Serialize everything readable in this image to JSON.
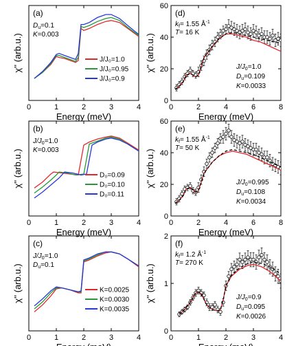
{
  "chart_data": [
    {
      "panel": "a",
      "type": "line",
      "xlabel": "Energy (meV)",
      "ylabel": "χ'' (arb.u.)",
      "xlim": [
        0,
        4
      ],
      "ylim": [
        0,
        9.5
      ],
      "xticks": [
        "0",
        "1",
        "2",
        "3",
        "4"
      ],
      "params": [
        "D",
        "=0.1",
        "K",
        "=0.003"
      ],
      "legend": "bottom-right",
      "series": [
        {
          "name": "J/J₀=1.0",
          "color": "#e0282c",
          "x": [
            0.2,
            0.5,
            0.8,
            1.0,
            1.1,
            1.3,
            1.5,
            1.7,
            1.8,
            1.9,
            2.0,
            2.2,
            2.5,
            2.8,
            3.0,
            3.3,
            3.6,
            4.0
          ],
          "y": [
            2.2,
            2.8,
            3.6,
            4.4,
            4.3,
            4.2,
            4.0,
            3.8,
            4.0,
            7.2,
            7.0,
            7.2,
            7.6,
            7.9,
            8.0,
            7.8,
            7.2,
            6.4
          ]
        },
        {
          "name": "J/J₀=0.95",
          "color": "#239a35",
          "x": [
            0.2,
            0.5,
            0.8,
            1.0,
            1.1,
            1.3,
            1.5,
            1.7,
            1.8,
            1.9,
            2.0,
            2.2,
            2.5,
            2.8,
            3.0,
            3.3,
            3.6,
            4.0
          ],
          "y": [
            2.2,
            2.8,
            3.7,
            4.5,
            4.5,
            4.3,
            4.1,
            3.9,
            4.3,
            7.4,
            7.3,
            7.5,
            7.9,
            8.2,
            8.3,
            8.0,
            7.3,
            6.5
          ]
        },
        {
          "name": "J/J₀=0.9",
          "color": "#2838d8",
          "x": [
            0.2,
            0.5,
            0.8,
            1.0,
            1.1,
            1.3,
            1.5,
            1.7,
            1.8,
            1.9,
            2.0,
            2.2,
            2.5,
            2.8,
            3.0,
            3.3,
            3.6,
            4.0
          ],
          "y": [
            2.2,
            2.9,
            3.8,
            4.6,
            4.7,
            4.5,
            4.3,
            4.1,
            4.7,
            7.6,
            7.6,
            7.8,
            8.3,
            8.6,
            8.6,
            8.2,
            7.5,
            6.6
          ]
        }
      ]
    },
    {
      "panel": "b",
      "type": "line",
      "xlabel": "Energy (meV)",
      "ylabel": "χ'' (arb.u.)",
      "xlim": [
        0,
        4
      ],
      "ylim": [
        0,
        9.5
      ],
      "xticks": [
        "0",
        "1",
        "2",
        "3",
        "4"
      ],
      "params": [
        "J/J",
        "=1.0",
        "K",
        "=0.003"
      ],
      "legend": "bottom-right",
      "series": [
        {
          "name": "D₀=0.09",
          "color": "#e0282c",
          "x": [
            0.2,
            0.5,
            0.8,
            0.9,
            1.2,
            1.5,
            1.8,
            2.0,
            2.2,
            2.5,
            2.8,
            3.0,
            3.3,
            3.6,
            4.0
          ],
          "y": [
            2.8,
            3.4,
            4.2,
            4.4,
            4.3,
            4.2,
            4.1,
            7.1,
            7.4,
            7.7,
            7.9,
            8.0,
            7.8,
            7.3,
            6.6
          ]
        },
        {
          "name": "D₀=0.10",
          "color": "#239a35",
          "x": [
            0.2,
            0.5,
            0.8,
            1.0,
            1.1,
            1.4,
            1.7,
            2.0,
            2.2,
            2.5,
            2.8,
            3.0,
            3.3,
            3.6,
            4.0
          ],
          "y": [
            2.3,
            2.9,
            3.6,
            4.1,
            4.4,
            4.3,
            4.1,
            4.2,
            7.2,
            7.5,
            7.8,
            7.9,
            7.7,
            7.2,
            6.5
          ]
        },
        {
          "name": "D₀=0.11",
          "color": "#2838d8",
          "x": [
            0.2,
            0.5,
            0.8,
            1.1,
            1.3,
            1.6,
            1.9,
            2.1,
            2.3,
            2.5,
            2.8,
            3.0,
            3.3,
            3.6,
            4.0
          ],
          "y": [
            1.8,
            2.4,
            3.1,
            3.8,
            4.4,
            4.3,
            4.1,
            4.2,
            7.1,
            7.4,
            7.7,
            7.8,
            7.6,
            7.2,
            6.5
          ]
        }
      ]
    },
    {
      "panel": "c",
      "type": "line",
      "xlabel": "Energy (meV)",
      "ylabel": "χ'' (arb.u.)",
      "xlim": [
        0,
        4
      ],
      "ylim": [
        0,
        9.5
      ],
      "xticks": [
        "0",
        "1",
        "2",
        "3",
        "4"
      ],
      "params": [
        "J/J",
        "=1.0",
        "D",
        "=0.1"
      ],
      "legend": "bottom-right",
      "series": [
        {
          "name": "K=0.0025",
          "color": "#e0282c",
          "x": [
            0.2,
            0.5,
            0.8,
            1.0,
            1.2,
            1.5,
            1.8,
            1.9,
            2.0,
            2.2,
            2.5,
            2.8,
            3.0,
            3.3,
            3.6,
            4.0
          ],
          "y": [
            1.9,
            2.6,
            3.5,
            4.2,
            4.3,
            4.1,
            3.8,
            3.8,
            6.9,
            7.1,
            7.5,
            7.8,
            7.9,
            7.7,
            7.2,
            6.4
          ]
        },
        {
          "name": "K=0.0030",
          "color": "#239a35",
          "x": [
            0.2,
            0.5,
            0.8,
            1.0,
            1.2,
            1.5,
            1.8,
            1.9,
            2.0,
            2.2,
            2.5,
            2.8,
            3.0,
            3.3,
            3.6,
            4.0
          ],
          "y": [
            2.2,
            2.9,
            3.8,
            4.3,
            4.3,
            4.1,
            3.9,
            3.9,
            7.0,
            7.2,
            7.6,
            7.9,
            7.9,
            7.7,
            7.2,
            6.5
          ]
        },
        {
          "name": "K=0.0035",
          "color": "#2838d8",
          "x": [
            0.2,
            0.5,
            0.8,
            1.0,
            1.2,
            1.5,
            1.8,
            1.9,
            2.0,
            2.2,
            2.5,
            2.8,
            3.0,
            3.3,
            3.6,
            4.0
          ],
          "y": [
            2.5,
            3.2,
            4.0,
            4.4,
            4.3,
            4.1,
            3.9,
            4.0,
            7.1,
            7.3,
            7.7,
            7.9,
            7.9,
            7.7,
            7.2,
            6.5
          ]
        }
      ]
    },
    {
      "panel": "d",
      "type": "scatter",
      "xlabel": "Energy (meV)",
      "ylabel": "χ'' (arb.u.)",
      "xlim": [
        0,
        8
      ],
      "ylim": [
        0,
        60
      ],
      "xticks": [
        "0",
        "2",
        "4",
        "6",
        "8"
      ],
      "yticks": [
        "0",
        "20",
        "40",
        "60"
      ],
      "params_top": [
        "k",
        "= 1.55 Å",
        "T",
        "= 16 K"
      ],
      "params_bottom": [
        "J/J",
        "=1.0",
        "D",
        "=0.109",
        "K",
        "=0.0033"
      ],
      "points": {
        "x": [
          0.4,
          0.6,
          0.8,
          1.0,
          1.2,
          1.4,
          1.6,
          1.8,
          2.0,
          2.2,
          2.4,
          2.6,
          2.8,
          3.0,
          3.2,
          3.4,
          3.6,
          3.8,
          4.0,
          4.2,
          4.4,
          4.6,
          4.8,
          5.0,
          5.2,
          5.4,
          5.6,
          5.8,
          6.0,
          6.2,
          6.4,
          6.6,
          6.8,
          7.0,
          7.2,
          7.4,
          7.6,
          7.8,
          8.0
        ],
        "y": [
          8,
          10,
          12,
          15,
          17,
          19,
          17,
          16,
          18,
          22,
          25,
          29,
          32,
          35,
          37,
          40,
          42,
          44,
          45,
          47,
          46,
          45,
          44,
          43,
          44,
          45,
          43,
          42,
          44,
          43,
          41,
          42,
          40,
          40,
          39,
          41,
          38,
          39,
          38
        ],
        "err": [
          2,
          2,
          2,
          2,
          2,
          2,
          2,
          2,
          3,
          3,
          3,
          3,
          3,
          3,
          3,
          3,
          3,
          3,
          3,
          4,
          4,
          4,
          4,
          4,
          4,
          4,
          4,
          4,
          4,
          4,
          4,
          4,
          4,
          4,
          4,
          4,
          4,
          4,
          4
        ]
      },
      "series": [
        {
          "color": "#e0282c",
          "style": "solid",
          "x": [
            0.3,
            0.6,
            0.9,
            1.1,
            1.4,
            1.8,
            2.0,
            2.4,
            3.0,
            3.5,
            4.0,
            4.5,
            5.0,
            5.5,
            6.0,
            6.5,
            7.0,
            7.5,
            8.0
          ],
          "y": [
            7,
            9,
            12,
            16,
            17,
            15,
            16,
            27,
            34,
            39,
            42,
            42,
            41,
            40,
            38,
            37,
            35,
            33,
            31
          ]
        },
        {
          "color": "#000000",
          "style": "dashed",
          "x": [
            0.3,
            0.6,
            0.9,
            1.1,
            1.4,
            1.8,
            2.0,
            2.4,
            3.0,
            3.5,
            4.0,
            4.5,
            5.0,
            5.5,
            6.0,
            6.5,
            7.0,
            7.5,
            8.0
          ],
          "y": [
            7,
            9,
            12,
            16,
            17,
            15,
            16,
            27,
            34,
            39,
            42,
            43,
            42,
            41,
            40,
            39,
            38,
            37,
            36
          ]
        }
      ]
    },
    {
      "panel": "e",
      "type": "scatter",
      "xlabel": "Energy (meV)",
      "ylabel": "χ'' (arb.u.)",
      "xlim": [
        0,
        8
      ],
      "ylim": [
        0,
        60
      ],
      "xticks": [
        "0",
        "2",
        "4",
        "6",
        "8"
      ],
      "yticks": [
        "0",
        "20",
        "40",
        "60"
      ],
      "params_top": [
        "k",
        "= 1.55 Å",
        "T",
        "= 50 K"
      ],
      "params_bottom": [
        "J/J",
        "=0.995",
        "D",
        "=0.108",
        "K",
        "=0.0034"
      ],
      "points": {
        "x": [
          0.4,
          0.6,
          0.8,
          1.0,
          1.2,
          1.4,
          1.6,
          1.8,
          2.0,
          2.2,
          2.4,
          2.6,
          2.8,
          3.0,
          3.2,
          3.4,
          3.6,
          3.8,
          4.0,
          4.2,
          4.4,
          4.6,
          4.8,
          5.0,
          5.2,
          5.4,
          5.6,
          5.8,
          6.0,
          6.2,
          6.4,
          6.6,
          6.8,
          7.0,
          7.2,
          7.4,
          7.6,
          7.8,
          8.0
        ],
        "y": [
          9,
          11,
          14,
          17,
          18,
          19,
          16,
          15,
          18,
          23,
          28,
          33,
          37,
          40,
          43,
          46,
          49,
          50,
          52,
          54,
          50,
          48,
          47,
          46,
          47,
          45,
          44,
          43,
          42,
          42,
          40,
          39,
          37,
          37,
          35,
          33,
          32,
          31,
          30
        ],
        "err": [
          2,
          2,
          2,
          2,
          2,
          2,
          2,
          2,
          3,
          3,
          3,
          3,
          3,
          3,
          3,
          3,
          3,
          4,
          4,
          4,
          4,
          4,
          4,
          4,
          4,
          4,
          4,
          4,
          4,
          4,
          4,
          4,
          4,
          4,
          4,
          4,
          4,
          4,
          4
        ]
      },
      "series": [
        {
          "color": "#e0282c",
          "style": "solid",
          "x": [
            0.3,
            0.6,
            0.9,
            1.1,
            1.4,
            1.8,
            2.0,
            2.4,
            3.0,
            3.5,
            4.0,
            4.5,
            5.0,
            5.5,
            6.0,
            6.5,
            7.0,
            7.5,
            8.0
          ],
          "y": [
            8,
            10,
            13,
            17,
            18,
            15,
            16,
            27,
            34,
            38,
            40,
            41,
            40,
            39,
            37,
            35,
            33,
            31,
            29
          ]
        },
        {
          "color": "#000000",
          "style": "dashed",
          "x": [
            0.3,
            0.6,
            0.9,
            1.1,
            1.4,
            1.8,
            2.0,
            2.4,
            3.0,
            3.5,
            4.0,
            4.5,
            5.0,
            5.5,
            6.0,
            6.5,
            7.0,
            7.5,
            8.0
          ],
          "y": [
            8,
            10,
            13,
            17,
            18,
            15,
            16,
            27,
            34,
            38,
            41,
            42,
            41,
            40,
            39,
            37,
            35,
            33,
            31
          ]
        }
      ]
    },
    {
      "panel": "f",
      "type": "scatter",
      "xlabel": "Energy (meV)",
      "ylabel": "χ'' (arb.u.)",
      "xlim": [
        0,
        4
      ],
      "ylim": [
        0,
        2
      ],
      "xticks": [
        "0",
        "1",
        "2",
        "3",
        "4"
      ],
      "yticks": [
        "0",
        "1",
        "2"
      ],
      "params_top": [
        "k",
        "= 1.2 Å",
        "T",
        "= 270 K"
      ],
      "params_bottom": [
        "J/J",
        "=0.9",
        "D",
        "=0.095",
        "K",
        "=0.0026"
      ],
      "points": {
        "x": [
          0.3,
          0.4,
          0.5,
          0.6,
          0.7,
          0.8,
          0.9,
          1.0,
          1.1,
          1.2,
          1.3,
          1.4,
          1.5,
          1.6,
          1.7,
          1.8,
          1.9,
          2.0,
          2.1,
          2.2,
          2.3,
          2.4,
          2.5,
          2.6,
          2.7,
          2.8,
          2.9,
          3.0,
          3.1,
          3.2,
          3.3,
          3.4,
          3.5,
          3.6,
          3.7,
          3.8,
          3.9,
          4.0
        ],
        "y": [
          0.35,
          0.4,
          0.45,
          0.5,
          0.6,
          0.7,
          0.8,
          0.85,
          0.8,
          0.75,
          0.6,
          0.5,
          0.5,
          0.55,
          0.45,
          0.4,
          0.6,
          0.95,
          1.15,
          1.3,
          1.35,
          1.4,
          1.5,
          1.45,
          1.5,
          1.55,
          1.5,
          1.5,
          1.45,
          1.55,
          1.6,
          1.5,
          1.45,
          1.35,
          1.3,
          1.2,
          1.15,
          1.05
        ],
        "err": [
          0.05,
          0.05,
          0.05,
          0.05,
          0.06,
          0.06,
          0.07,
          0.07,
          0.07,
          0.07,
          0.07,
          0.07,
          0.07,
          0.07,
          0.07,
          0.07,
          0.08,
          0.1,
          0.1,
          0.12,
          0.12,
          0.12,
          0.14,
          0.14,
          0.14,
          0.14,
          0.15,
          0.15,
          0.15,
          0.15,
          0.15,
          0.15,
          0.15,
          0.15,
          0.15,
          0.15,
          0.15,
          0.15
        ]
      },
      "series": [
        {
          "color": "#e0282c",
          "style": "solid",
          "x": [
            0.3,
            0.5,
            0.7,
            0.9,
            1.0,
            1.1,
            1.3,
            1.5,
            1.7,
            1.8,
            1.9,
            2.0,
            2.2,
            2.5,
            2.8,
            3.0,
            3.3,
            3.6,
            4.0
          ],
          "y": [
            0.35,
            0.45,
            0.6,
            0.8,
            0.82,
            0.78,
            0.55,
            0.45,
            0.42,
            0.45,
            0.65,
            0.95,
            1.15,
            1.3,
            1.38,
            1.4,
            1.35,
            1.25,
            1.05
          ]
        },
        {
          "color": "#000000",
          "style": "dashed",
          "x": [
            0.3,
            0.5,
            0.7,
            0.9,
            1.0,
            1.1,
            1.3,
            1.5,
            1.7,
            1.8,
            1.9,
            2.0,
            2.2,
            2.5,
            2.8,
            3.0,
            3.3,
            3.6,
            4.0
          ],
          "y": [
            0.35,
            0.45,
            0.6,
            0.8,
            0.82,
            0.78,
            0.55,
            0.45,
            0.42,
            0.45,
            0.65,
            0.95,
            1.17,
            1.33,
            1.42,
            1.45,
            1.42,
            1.35,
            1.2
          ]
        }
      ]
    }
  ]
}
